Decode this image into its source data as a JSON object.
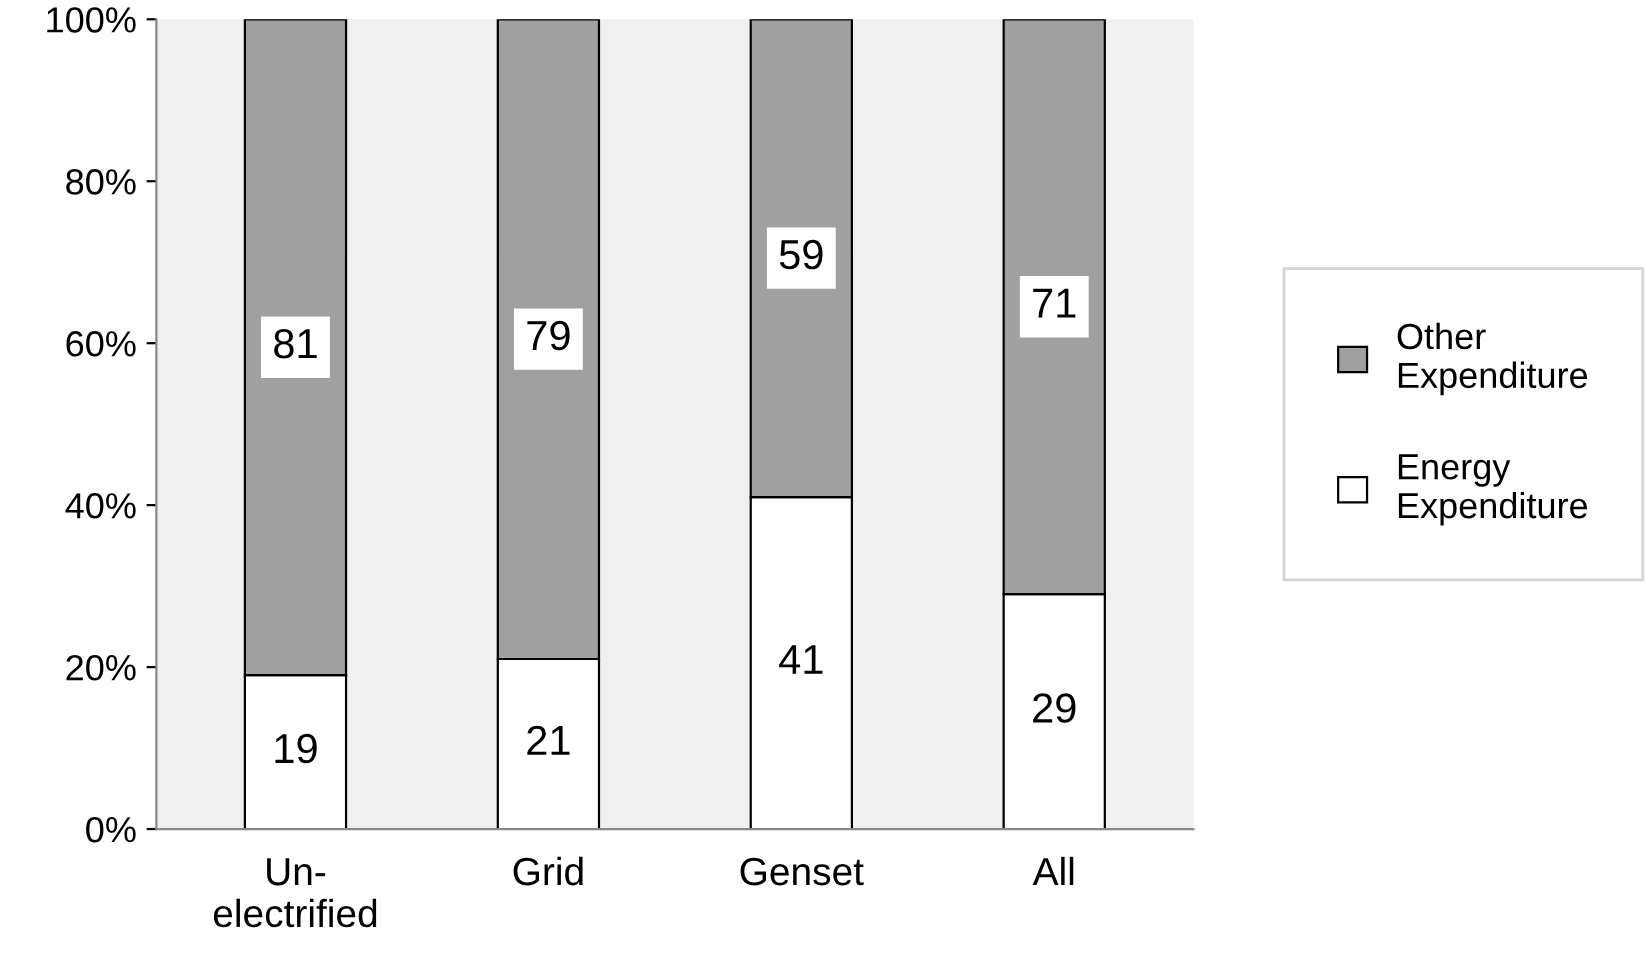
{
  "chart_data": {
    "type": "bar",
    "stacked": true,
    "categories": [
      "Un-\nelectrified",
      "Grid",
      "Genset",
      "All"
    ],
    "series": [
      {
        "name": "Energy Expenditure",
        "color": "#ffffff",
        "values": [
          19,
          21,
          41,
          29
        ]
      },
      {
        "name": "Other Expenditure",
        "color": "#a0a0a0",
        "values": [
          81,
          79,
          59,
          71
        ]
      }
    ],
    "ylim": [
      0,
      100
    ],
    "yticks": [
      {
        "value": 0,
        "label": "0%"
      },
      {
        "value": 20,
        "label": "20%"
      },
      {
        "value": 40,
        "label": "40%"
      },
      {
        "value": 60,
        "label": "60%"
      },
      {
        "value": 80,
        "label": "80%"
      },
      {
        "value": 100,
        "label": "100%"
      }
    ],
    "data_labels": true,
    "legend": "right",
    "grid": false
  }
}
